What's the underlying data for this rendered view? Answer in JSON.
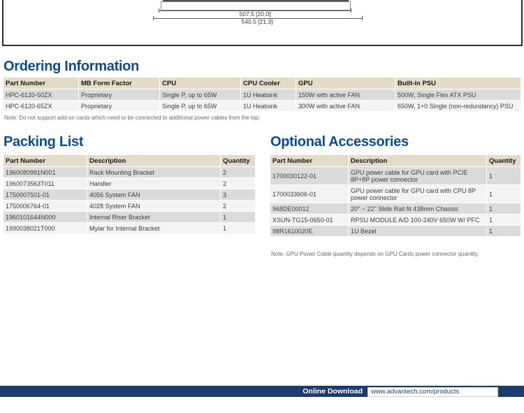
{
  "diagram": {
    "dim_inner_label": "507.5 [20.0]",
    "dim_outer_label": "540.5 [21.3]"
  },
  "sections": {
    "ordering": {
      "title": "Ordering Information",
      "note": "Note: Do not support add-on cards which need to be connected to additional power cables from the top."
    },
    "packing": {
      "title": "Packing List"
    },
    "accessories": {
      "title": "Optional Accessories",
      "note": "Note. GPU Power Cable quantity depends on GPU Cards power connector quantity."
    }
  },
  "tables": {
    "ordering": {
      "headers": [
        "Part Number",
        "MB Form Factor",
        "CPU",
        "CPU Cooler",
        "GPU",
        "Built-in PSU"
      ],
      "rows": [
        [
          "HPC-6120-50ZX",
          "Proprietary",
          "Single P, up to 65W",
          "1U Heatsink",
          "150W with active FAN",
          "500W, Single Flex ATX PSU"
        ],
        [
          "HPC-6120-65ZX",
          "Proprietary",
          "Single P, up to 65W",
          "1U Heatsink",
          "300W with active FAN",
          "650W, 1+0 Single (non-redundancy) PSU"
        ]
      ]
    },
    "packing": {
      "headers": [
        "Part Number",
        "Description",
        "Quantity"
      ],
      "rows": [
        [
          "1960080991N001",
          "Rack Mounting Bracket",
          "2"
        ],
        [
          "1960073563T011",
          "Handler",
          "2"
        ],
        [
          "1750007501-01",
          "4056 System FAN",
          "3"
        ],
        [
          "1750006764-01",
          "4028 System FAN",
          "2"
        ],
        [
          "1960101644N000",
          "Internal Riser Bracket",
          "1"
        ],
        [
          "1990038021T000",
          "Mylar for Internal Bracket",
          "1"
        ]
      ]
    },
    "accessories": {
      "headers": [
        "Part Number",
        "Description",
        "Quantity"
      ],
      "rows": [
        [
          "1700030122-01",
          "GPU power cable for GPU card with PCIE 8P+8P power connector",
          "1"
        ],
        [
          "1700033606-01",
          "GPU power cable for GPU card with CPU 8P power connector",
          "1"
        ],
        [
          "968DE00012",
          "20\" ~ 22\" Slide Rail fit 438mm Chassis",
          "1"
        ],
        [
          "XSUN-TG15-0650-01",
          "RPSU MODULE A/D 100-240V 650W W/ PFC",
          "1"
        ],
        [
          "98R1610020E",
          "1U Bezel",
          "1"
        ]
      ]
    }
  },
  "footer": {
    "label": "Online Download",
    "url": "www.advantech.com/products"
  },
  "colors": {
    "heading_blue": "#0d4c8a",
    "table_header_bg": "#e4dbc8",
    "row_alt_bg": "#dbdbdb",
    "footer_navy": "#1d3c6d"
  }
}
